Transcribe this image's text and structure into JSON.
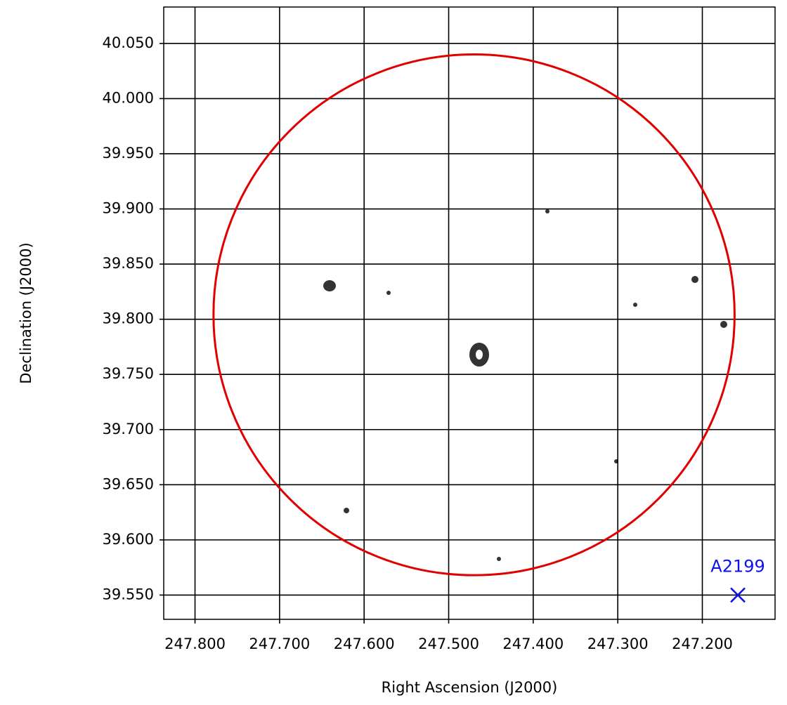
{
  "chart_data": {
    "type": "sky",
    "x_label": "Right Ascension (J2000)",
    "y_label": "Declination (J2000)",
    "xlim": [
      247.837,
      247.114
    ],
    "ylim": [
      39.528,
      40.083
    ],
    "xticks": [
      {
        "value": 247.8,
        "label": "247.800"
      },
      {
        "value": 247.7,
        "label": "247.700"
      },
      {
        "value": 247.6,
        "label": "247.600"
      },
      {
        "value": 247.5,
        "label": "247.500"
      },
      {
        "value": 247.4,
        "label": "247.400"
      },
      {
        "value": 247.3,
        "label": "247.300"
      },
      {
        "value": 247.2,
        "label": "247.200"
      }
    ],
    "yticks": [
      {
        "value": 40.05,
        "label": "40.050"
      },
      {
        "value": 40.0,
        "label": "40.000"
      },
      {
        "value": 39.95,
        "label": "39.950"
      },
      {
        "value": 39.9,
        "label": "39.900"
      },
      {
        "value": 39.85,
        "label": "39.850"
      },
      {
        "value": 39.8,
        "label": "39.800"
      },
      {
        "value": 39.75,
        "label": "39.750"
      },
      {
        "value": 39.7,
        "label": "39.700"
      },
      {
        "value": 39.65,
        "label": "39.650"
      },
      {
        "value": 39.6,
        "label": "39.600"
      },
      {
        "value": 39.55,
        "label": "39.550"
      }
    ],
    "grid": true,
    "region": {
      "ra": 247.47,
      "dec": 39.804,
      "radius": 0.236,
      "color": "#e00000"
    },
    "marker": {
      "label": "A2199",
      "ra": 247.158,
      "dec": 39.55,
      "color": "#1010ee"
    }
  }
}
